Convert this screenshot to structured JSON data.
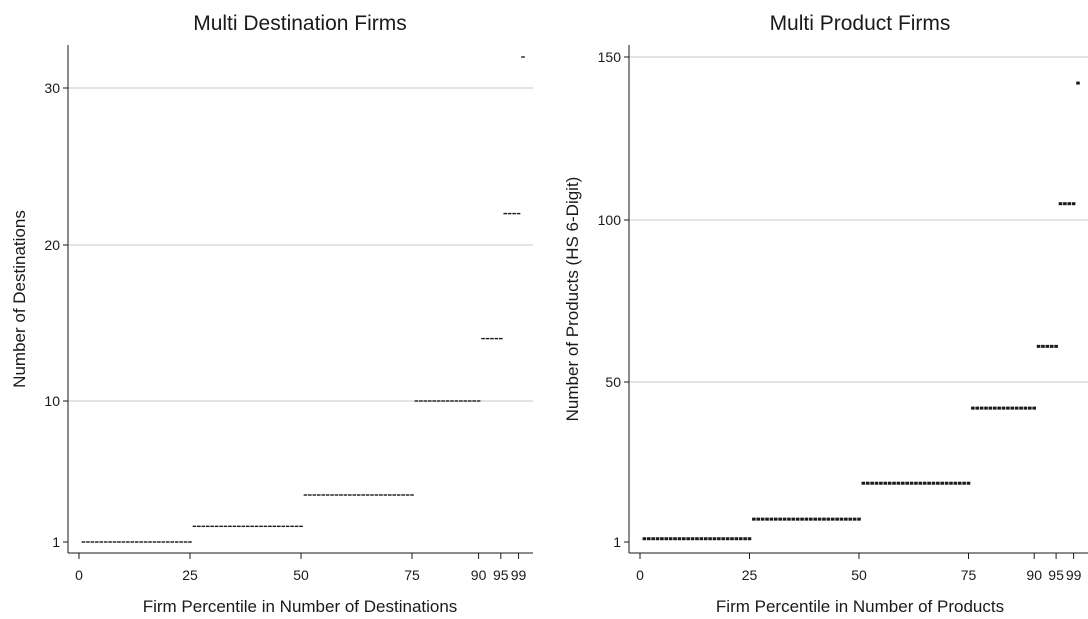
{
  "chart_data": [
    {
      "type": "scatter",
      "title": "Multi Destination Firms",
      "xlabel": "Firm Percentile in Number of Destinations",
      "ylabel": "Number of Destinations",
      "x_ticks": [
        0,
        25,
        50,
        75,
        90,
        95,
        99
      ],
      "y_ticks": [
        1,
        10,
        20,
        30
      ],
      "xlim": [
        0,
        100
      ],
      "ylim": [
        1,
        32
      ],
      "grid": true,
      "series": [
        {
          "values": [
            {
              "x_from": 1,
              "x_to": 25,
              "y": 1
            },
            {
              "x_from": 26,
              "x_to": 50,
              "y": 2
            },
            {
              "x_from": 51,
              "x_to": 75,
              "y": 4
            },
            {
              "x_from": 76,
              "x_to": 90,
              "y": 10
            },
            {
              "x_from": 91,
              "x_to": 95,
              "y": 14
            },
            {
              "x_from": 96,
              "x_to": 99,
              "y": 22
            },
            {
              "x_from": 100,
              "x_to": 100,
              "y": 32
            }
          ]
        }
      ]
    },
    {
      "type": "scatter",
      "title": "Multi Product Firms",
      "xlabel": "Firm Percentile in Number of Products",
      "ylabel": "Number of Products (HS 6-Digit)",
      "x_ticks": [
        0,
        25,
        50,
        75,
        90,
        95,
        99
      ],
      "y_ticks": [
        1,
        50,
        100,
        150
      ],
      "xlim": [
        0,
        100
      ],
      "ylim": [
        1,
        150
      ],
      "grid": true,
      "series": [
        {
          "values": [
            {
              "x_from": 1,
              "x_to": 25,
              "y": 2
            },
            {
              "x_from": 26,
              "x_to": 50,
              "y": 8
            },
            {
              "x_from": 51,
              "x_to": 75,
              "y": 19
            },
            {
              "x_from": 76,
              "x_to": 90,
              "y": 42
            },
            {
              "x_from": 91,
              "x_to": 95,
              "y": 61
            },
            {
              "x_from": 96,
              "x_to": 99,
              "y": 105
            },
            {
              "x_from": 100,
              "x_to": 100,
              "y": 142
            }
          ]
        }
      ]
    }
  ]
}
